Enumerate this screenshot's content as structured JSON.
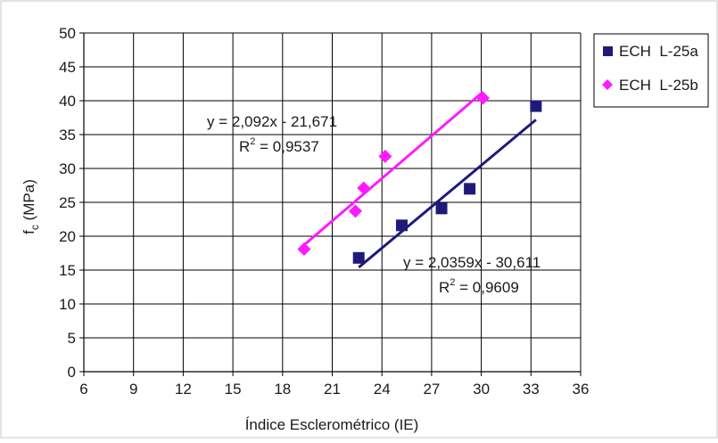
{
  "chart_data": {
    "type": "scatter",
    "xlabel": "Índice Esclerométrico (IE)",
    "ylabel_main": "f",
    "ylabel_sub": "c",
    "ylabel_unit": " (MPa)",
    "xlim": [
      6,
      36
    ],
    "ylim": [
      0,
      50
    ],
    "x_ticks": [
      6,
      9,
      12,
      15,
      18,
      21,
      24,
      27,
      30,
      33,
      36
    ],
    "y_ticks": [
      0,
      5,
      10,
      15,
      20,
      25,
      30,
      35,
      40,
      45,
      50
    ],
    "grid": true,
    "legend_position": "right",
    "series": [
      {
        "name": "ECH  L-25a",
        "marker": "square",
        "color": "#1f1a7a",
        "points": [
          [
            22.6,
            16.8
          ],
          [
            25.2,
            21.6
          ],
          [
            27.6,
            24.1
          ],
          [
            29.3,
            27.0
          ],
          [
            33.3,
            39.2
          ]
        ],
        "trendline": {
          "slope": 2.0359,
          "intercept": -30.611,
          "x_range": [
            22.6,
            33.3
          ]
        },
        "equation": "y = 2,0359x - 30,611",
        "r2_prefix": "R",
        "r2_exp": "2",
        "r2_value": " = 0,9609"
      },
      {
        "name": "ECH  L-25b",
        "marker": "diamond",
        "color": "#ff1aff",
        "points": [
          [
            19.3,
            18.1
          ],
          [
            22.4,
            23.7
          ],
          [
            22.9,
            27.1
          ],
          [
            24.2,
            31.8
          ],
          [
            30.1,
            40.4
          ]
        ],
        "trendline": {
          "slope": 2.092,
          "intercept": -21.671,
          "x_range": [
            19.3,
            30.1
          ]
        },
        "equation": "y = 2,092x - 21,671",
        "r2_prefix": "R",
        "r2_exp": "2",
        "r2_value": " = 0,9537"
      }
    ]
  }
}
